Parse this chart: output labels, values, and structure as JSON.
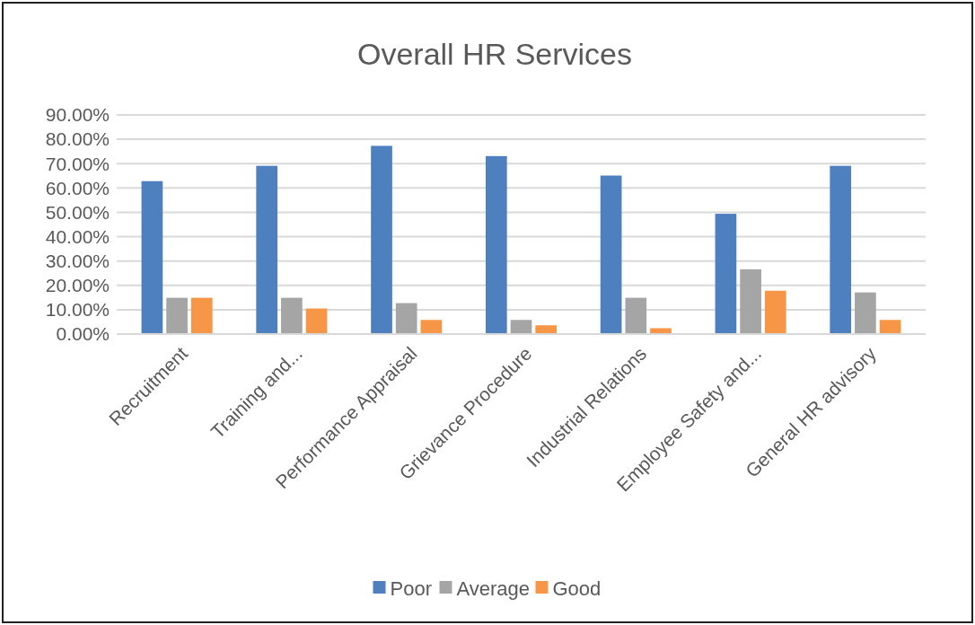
{
  "chart_data": {
    "type": "bar",
    "title": "Overall HR Services",
    "categories": [
      "Recruitment",
      "Training and...",
      "Performance Appraisal",
      "Grievance Procedure",
      "Industrial Relations",
      "Employee Safety and...",
      "General HR advisory"
    ],
    "series": [
      {
        "name": "Poor",
        "color": "#4e7fbf",
        "values": [
          62.8,
          69.1,
          77.3,
          73.1,
          65.1,
          49.4,
          69.1
        ]
      },
      {
        "name": "Average",
        "color": "#a5a5a5",
        "values": [
          14.9,
          14.9,
          12.7,
          5.8,
          14.9,
          26.6,
          17.1
        ]
      },
      {
        "name": "Good",
        "color": "#f79646",
        "values": [
          14.9,
          10.5,
          5.8,
          3.6,
          2.4,
          17.8,
          5.8
        ]
      }
    ],
    "ylim": [
      0,
      90
    ],
    "yticks": [
      {
        "value": 0,
        "label": "0.00%"
      },
      {
        "value": 10,
        "label": "10.00%"
      },
      {
        "value": 20,
        "label": "20.00%"
      },
      {
        "value": 30,
        "label": "30.00%"
      },
      {
        "value": 40,
        "label": "40.00%"
      },
      {
        "value": 50,
        "label": "50.00%"
      },
      {
        "value": 60,
        "label": "60.00%"
      },
      {
        "value": 70,
        "label": "70.00%"
      },
      {
        "value": 80,
        "label": "80.00%"
      },
      {
        "value": 90,
        "label": "90.00%"
      }
    ],
    "grid": "y",
    "legend": "bottom"
  }
}
